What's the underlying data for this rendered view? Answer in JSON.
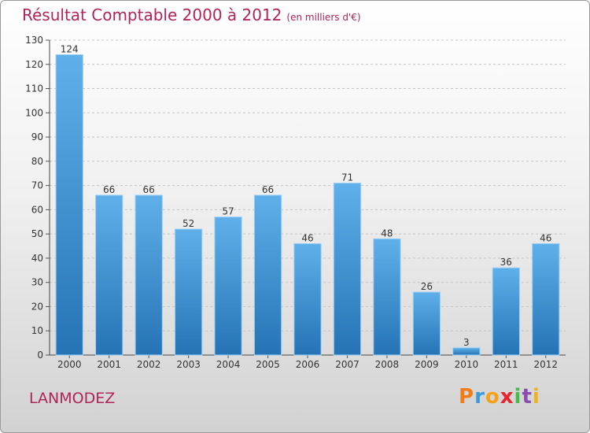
{
  "title": "Résultat Comptable 2000 à 2012",
  "subtitle": "(en milliers d'€)",
  "commune": "LANMODEZ",
  "logo": {
    "letters": [
      "P",
      "r",
      "o",
      "x",
      "i",
      "t",
      "i"
    ],
    "colors": [
      "#f07d1a",
      "#3a9bd6",
      "#f5a21a",
      "#e8222e",
      "#4ab84a",
      "#8b4db0",
      "#f0b41a"
    ]
  },
  "colors": {
    "bar": "#3d97dd",
    "bar_dark": "#2777b9",
    "title": "#b0245a"
  },
  "chart_data": {
    "type": "bar",
    "categories": [
      "2000",
      "2001",
      "2002",
      "2003",
      "2004",
      "2005",
      "2006",
      "2007",
      "2008",
      "2009",
      "2010",
      "2011",
      "2012"
    ],
    "values": [
      124,
      66,
      66,
      52,
      57,
      66,
      46,
      71,
      48,
      26,
      3,
      36,
      46
    ],
    "ylim": [
      0,
      130
    ],
    "yticks": [
      0,
      10,
      20,
      30,
      40,
      50,
      60,
      70,
      80,
      90,
      100,
      110,
      120,
      130
    ],
    "grid": true,
    "data_labels": true
  }
}
